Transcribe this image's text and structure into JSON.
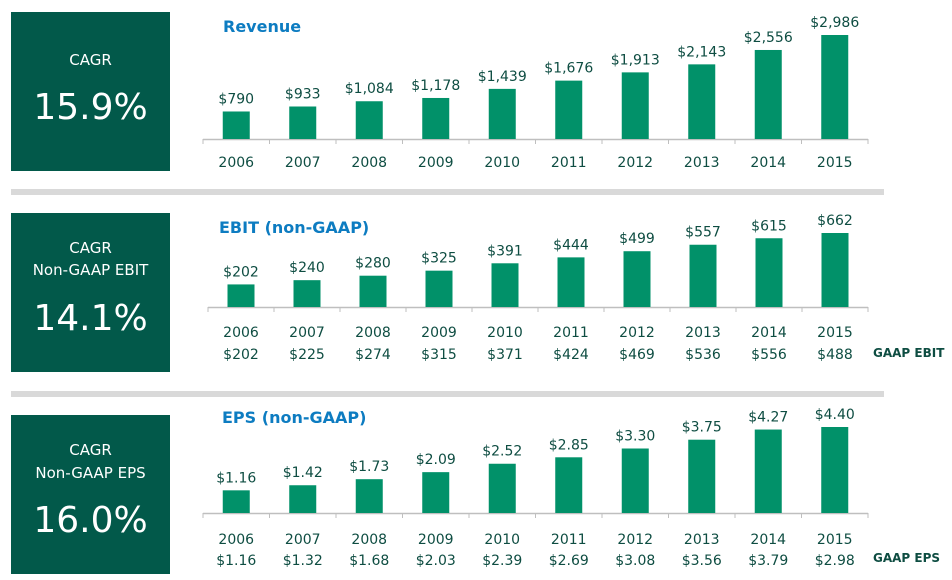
{
  "colors": {
    "panel": "#02594a",
    "bar": "#019169",
    "title": "#0d7cc1",
    "label": "#0e4d42",
    "axis": "#bfbfbf",
    "separator": "#d9d9d9"
  },
  "sections": [
    {
      "cagr_label_lines": [
        "CAGR"
      ],
      "cagr_value": "15.9%",
      "title": "Revenue"
    },
    {
      "cagr_label_lines": [
        "CAGR",
        "Non-GAAP EBIT"
      ],
      "cagr_value": "14.1%",
      "title": "EBIT (non-GAAP)",
      "secondary_label": "GAAP EBIT"
    },
    {
      "cagr_label_lines": [
        "CAGR",
        "Non-GAAP EPS"
      ],
      "cagr_value": "16.0%",
      "title": "EPS (non-GAAP)",
      "secondary_label": "GAAP EPS"
    }
  ],
  "chart_data": [
    {
      "type": "bar",
      "title": "Revenue",
      "xlabel": "",
      "ylabel": "",
      "grid": false,
      "categories": [
        "2006",
        "2007",
        "2008",
        "2009",
        "2010",
        "2011",
        "2012",
        "2013",
        "2014",
        "2015"
      ],
      "values": [
        790,
        933,
        1084,
        1178,
        1439,
        1676,
        1913,
        2143,
        2556,
        2986
      ],
      "value_labels": [
        "$790",
        "$933",
        "$1,084",
        "$1,178",
        "$1,439",
        "$1,676",
        "$1,913",
        "$2,143",
        "$2,556",
        "$2,986"
      ],
      "ylim": [
        0,
        2986
      ]
    },
    {
      "type": "bar",
      "title": "EBIT (non-GAAP)",
      "xlabel": "",
      "ylabel": "",
      "grid": false,
      "categories": [
        "2006",
        "2007",
        "2008",
        "2009",
        "2010",
        "2011",
        "2012",
        "2013",
        "2014",
        "2015"
      ],
      "values": [
        202,
        240,
        280,
        325,
        391,
        444,
        499,
        557,
        615,
        662
      ],
      "value_labels": [
        "$202",
        "$240",
        "$280",
        "$325",
        "$391",
        "$444",
        "$499",
        "$557",
        "$615",
        "$662"
      ],
      "secondary_series": {
        "name": "GAAP EBIT",
        "values": [
          202,
          225,
          274,
          315,
          371,
          424,
          469,
          536,
          556,
          488
        ],
        "labels": [
          "$202",
          "$225",
          "$274",
          "$315",
          "$371",
          "$424",
          "$469",
          "$536",
          "$556",
          "$488"
        ]
      },
      "ylim": [
        0,
        662
      ]
    },
    {
      "type": "bar",
      "title": "EPS (non-GAAP)",
      "xlabel": "",
      "ylabel": "",
      "grid": false,
      "categories": [
        "2006",
        "2007",
        "2008",
        "2009",
        "2010",
        "2011",
        "2012",
        "2013",
        "2014",
        "2015"
      ],
      "values": [
        1.16,
        1.42,
        1.73,
        2.09,
        2.52,
        2.85,
        3.3,
        3.75,
        4.27,
        4.4
      ],
      "value_labels": [
        "$1.16",
        "$1.42",
        "$1.73",
        "$2.09",
        "$2.52",
        "$2.85",
        "$3.30",
        "$3.75",
        "$4.27",
        "$4.40"
      ],
      "secondary_series": {
        "name": "GAAP EPS",
        "values": [
          1.16,
          1.32,
          1.68,
          2.03,
          2.39,
          2.69,
          3.08,
          3.56,
          3.79,
          2.98
        ],
        "labels": [
          "$1.16",
          "$1.32",
          "$1.68",
          "$2.03",
          "$2.39",
          "$2.69",
          "$3.08",
          "$3.56",
          "$3.79",
          "$2.98"
        ]
      },
      "ylim": [
        0,
        4.4
      ]
    }
  ]
}
